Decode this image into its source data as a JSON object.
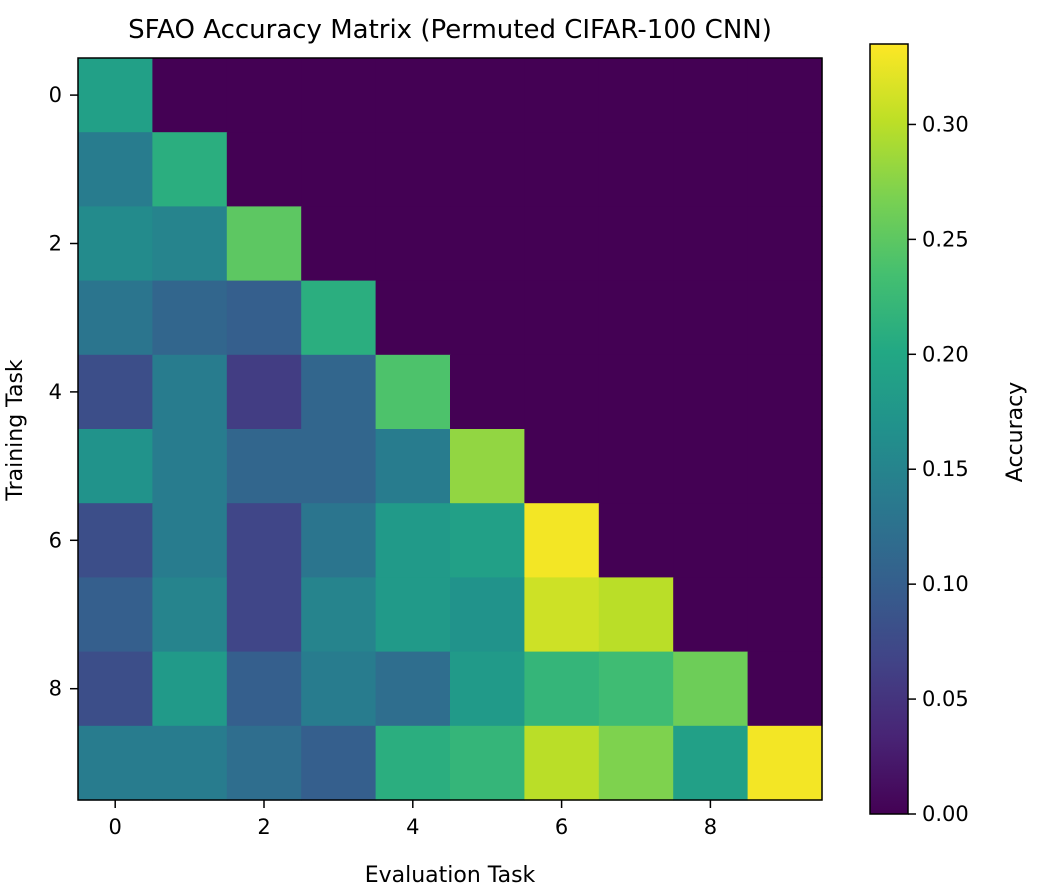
{
  "chart_data": {
    "type": "heatmap",
    "title": "SFAO Accuracy Matrix (Permuted CIFAR-100 CNN)",
    "xlabel": "Evaluation Task",
    "ylabel": "Training Task",
    "colorbar_label": "Accuracy",
    "colormap": "viridis",
    "x_ticks": [
      0,
      2,
      4,
      6,
      8
    ],
    "y_ticks": [
      0,
      2,
      4,
      6,
      8
    ],
    "colorbar_ticks": [
      "0.00",
      "0.05",
      "0.10",
      "0.15",
      "0.20",
      "0.25",
      "0.30"
    ],
    "vmin": 0.0,
    "vmax": 0.335,
    "rows": [
      "0",
      "1",
      "2",
      "3",
      "4",
      "5",
      "6",
      "7",
      "8",
      "9"
    ],
    "cols": [
      "0",
      "1",
      "2",
      "3",
      "4",
      "5",
      "6",
      "7",
      "8",
      "9"
    ],
    "values": [
      [
        0.19,
        0,
        0,
        0,
        0,
        0,
        0,
        0,
        0,
        0
      ],
      [
        0.14,
        0.21,
        0,
        0,
        0,
        0,
        0,
        0,
        0,
        0
      ],
      [
        0.16,
        0.15,
        0.25,
        0,
        0,
        0,
        0,
        0,
        0,
        0
      ],
      [
        0.13,
        0.11,
        0.1,
        0.21,
        0,
        0,
        0,
        0,
        0,
        0
      ],
      [
        0.08,
        0.14,
        0.06,
        0.11,
        0.24,
        0,
        0,
        0,
        0,
        0
      ],
      [
        0.17,
        0.14,
        0.11,
        0.11,
        0.14,
        0.28,
        0,
        0,
        0,
        0
      ],
      [
        0.08,
        0.14,
        0.07,
        0.13,
        0.18,
        0.19,
        0.33,
        0,
        0,
        0
      ],
      [
        0.1,
        0.15,
        0.07,
        0.15,
        0.18,
        0.17,
        0.31,
        0.3,
        0,
        0
      ],
      [
        0.08,
        0.18,
        0.1,
        0.14,
        0.12,
        0.18,
        0.22,
        0.23,
        0.26,
        0
      ],
      [
        0.14,
        0.14,
        0.12,
        0.1,
        0.21,
        0.22,
        0.3,
        0.27,
        0.19,
        0.33
      ]
    ]
  }
}
